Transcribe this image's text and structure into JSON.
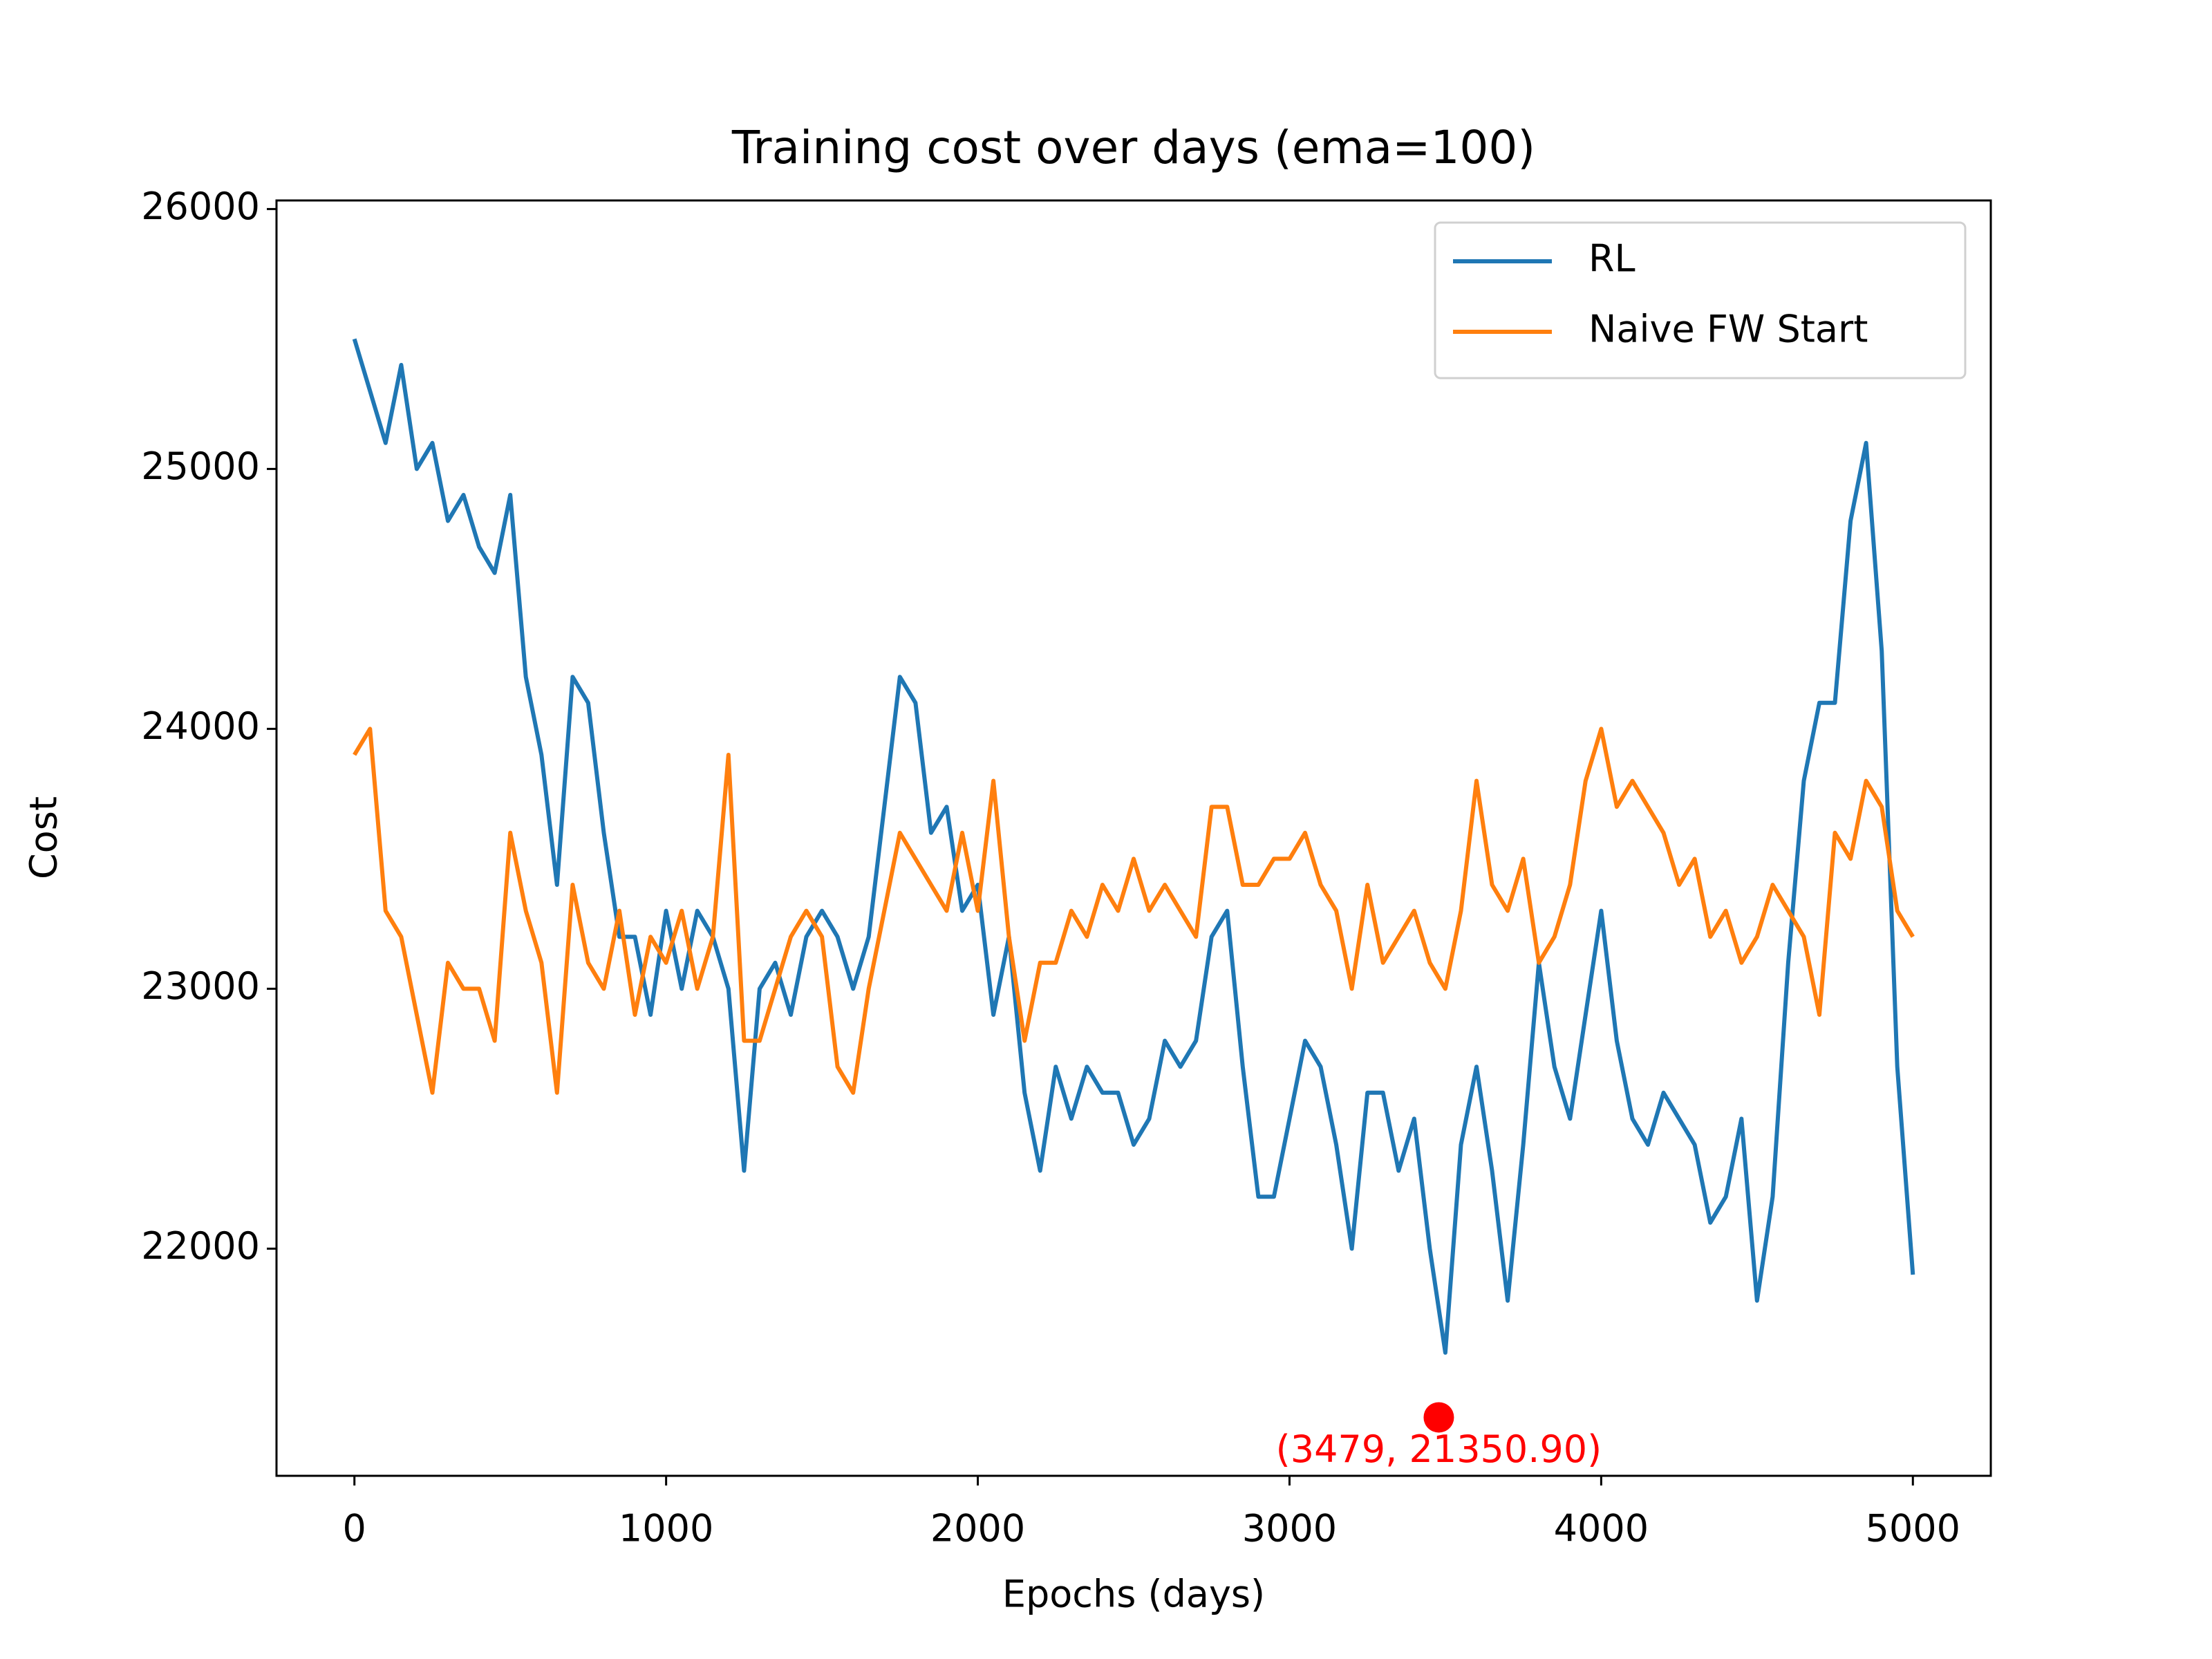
{
  "chart_data": {
    "type": "line",
    "title": "Training cost over days (ema=100)",
    "x_label": "Epochs (days)",
    "y_label": "Cost",
    "x": [
      0,
      50,
      100,
      150,
      200,
      250,
      300,
      350,
      400,
      450,
      500,
      550,
      600,
      650,
      700,
      750,
      800,
      850,
      900,
      950,
      1000,
      1050,
      1100,
      1150,
      1200,
      1250,
      1300,
      1350,
      1400,
      1450,
      1500,
      1550,
      1600,
      1650,
      1700,
      1750,
      1800,
      1850,
      1900,
      1950,
      2000,
      2050,
      2100,
      2150,
      2200,
      2250,
      2300,
      2350,
      2400,
      2450,
      2500,
      2550,
      2600,
      2650,
      2700,
      2750,
      2800,
      2850,
      2900,
      2950,
      3000,
      3050,
      3100,
      3150,
      3200,
      3250,
      3300,
      3350,
      3400,
      3450,
      3500,
      3550,
      3600,
      3650,
      3700,
      3750,
      3800,
      3850,
      3900,
      3950,
      4000,
      4050,
      4100,
      4150,
      4200,
      4250,
      4300,
      4350,
      4400,
      4450,
      4500,
      4550,
      4600,
      4650,
      4700,
      4750,
      4800,
      4850,
      4900,
      4950,
      5000
    ],
    "series": [
      {
        "name": "RL",
        "color": "#1f77b4",
        "values": [
          25500,
          25300,
          25100,
          25400,
          25000,
          25100,
          24800,
          24900,
          24700,
          24600,
          24900,
          24200,
          23900,
          23400,
          24200,
          24100,
          23600,
          23200,
          23200,
          22900,
          23300,
          23000,
          23300,
          23200,
          23000,
          22300,
          23000,
          23100,
          22900,
          23200,
          23300,
          23200,
          23000,
          23200,
          23700,
          24200,
          24100,
          23600,
          23700,
          23300,
          23400,
          22900,
          23200,
          22600,
          22300,
          22700,
          22500,
          22700,
          22600,
          22600,
          22400,
          22500,
          22800,
          22700,
          22800,
          23200,
          23300,
          22700,
          22200,
          22200,
          22500,
          22800,
          22700,
          22400,
          22000,
          22600,
          22600,
          22300,
          22500,
          22000,
          21600,
          22400,
          22700,
          22300,
          21800,
          22400,
          23100,
          22700,
          22500,
          22900,
          23300,
          22800,
          22500,
          22400,
          22600,
          22500,
          22400,
          22100,
          22200,
          22500,
          21800,
          22200,
          23100,
          23800,
          24100,
          24100,
          24800,
          25100,
          24300,
          22700,
          21900
        ]
      },
      {
        "name": "Naive FW Start",
        "color": "#ff7f0e",
        "values": [
          23900,
          24000,
          23300,
          23200,
          22900,
          22600,
          23100,
          23000,
          23000,
          22800,
          23600,
          23300,
          23100,
          22600,
          23400,
          23100,
          23000,
          23300,
          22900,
          23200,
          23100,
          23300,
          23000,
          23200,
          23900,
          22800,
          22800,
          23000,
          23200,
          23300,
          23200,
          22700,
          22600,
          23000,
          23300,
          23600,
          23500,
          23400,
          23300,
          23600,
          23300,
          23800,
          23200,
          22800,
          23100,
          23100,
          23300,
          23200,
          23400,
          23300,
          23500,
          23300,
          23400,
          23300,
          23200,
          23700,
          23700,
          23400,
          23400,
          23500,
          23500,
          23600,
          23400,
          23300,
          23000,
          23400,
          23100,
          23200,
          23300,
          23100,
          23000,
          23300,
          23800,
          23400,
          23300,
          23500,
          23100,
          23200,
          23400,
          23800,
          24000,
          23700,
          23800,
          23700,
          23600,
          23400,
          23500,
          23200,
          23300,
          23100,
          23200,
          23400,
          23300,
          23200,
          22900,
          23600,
          23500,
          23800,
          23700,
          23300,
          23200
        ]
      }
    ],
    "annotation": {
      "x": 3479,
      "y": 21350.9,
      "label": "(3479, 21350.90)",
      "color": "#ff0000"
    },
    "xlim": [
      -250,
      5250
    ],
    "ylim": [
      21126,
      26033
    ],
    "xticks": [
      0,
      1000,
      2000,
      3000,
      4000,
      5000
    ],
    "yticks": [
      22000,
      23000,
      24000,
      25000,
      26000
    ],
    "legend": "upper right"
  }
}
